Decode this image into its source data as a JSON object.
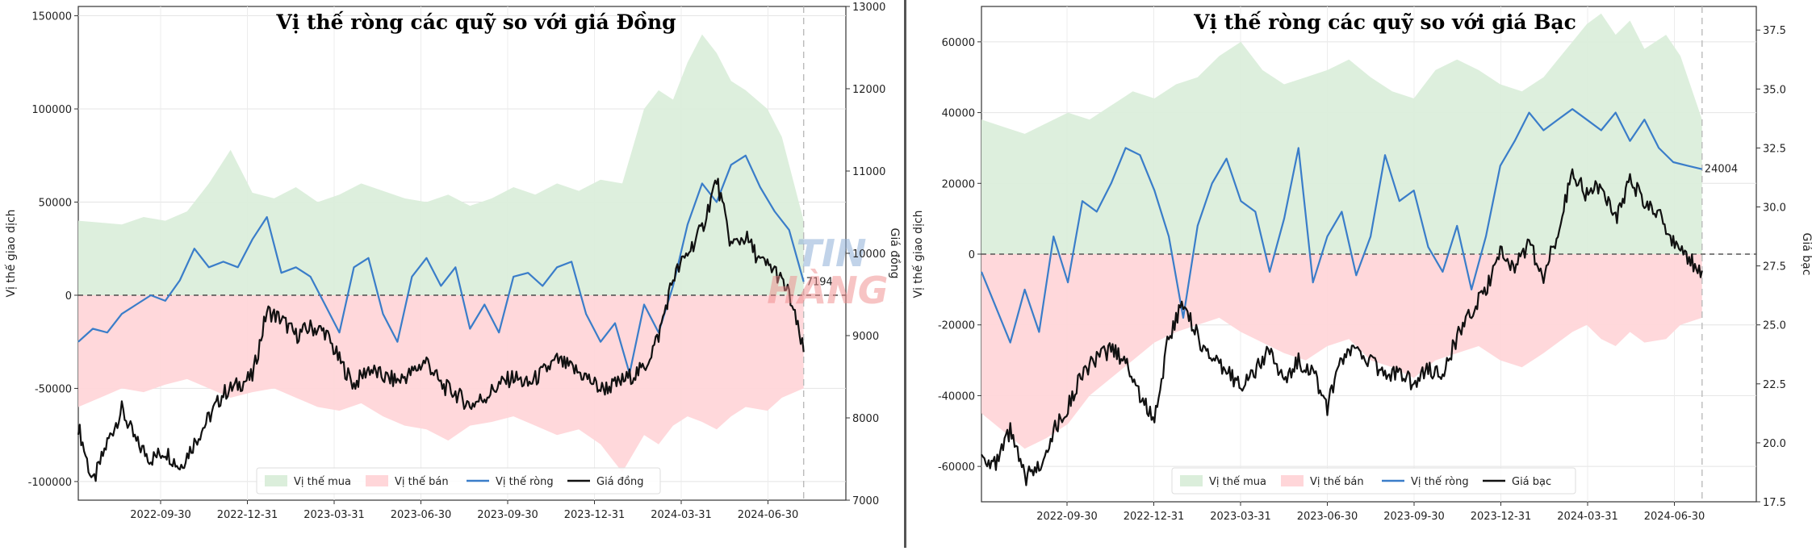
{
  "chart_data": [
    {
      "type": "line",
      "title": "Vị thế ròng các quỹ so với giá Đồng",
      "ylabel": "Vị thế giao dịch",
      "y2label": "Giá đồng",
      "xticks": [
        "2022-09-30",
        "2022-12-31",
        "2023-03-31",
        "2023-06-30",
        "2023-09-30",
        "2023-12-31",
        "2024-03-31",
        "2024-06-30"
      ],
      "ylim": [
        -110000,
        155000
      ],
      "yticks": [
        150000,
        100000,
        50000,
        0,
        -50000,
        -100000
      ],
      "y2lim": [
        7000,
        13000
      ],
      "y2ticks": [
        13000,
        12000,
        11000,
        10000,
        9000,
        8000,
        7000
      ],
      "net_label": "7194",
      "legend_position": "bottom-center",
      "grid": true,
      "colors": {
        "long": "#dbeedb",
        "short": "#ffd6d9",
        "net": "#3a7dc9",
        "price": "#111111"
      },
      "series": [
        {
          "name": "Vị thế mua",
          "kind": "area",
          "x": [
            0,
            0.03,
            0.06,
            0.09,
            0.12,
            0.15,
            0.18,
            0.21,
            0.24,
            0.27,
            0.3,
            0.33,
            0.36,
            0.39,
            0.42,
            0.45,
            0.48,
            0.51,
            0.54,
            0.57,
            0.6,
            0.63,
            0.66,
            0.69,
            0.72,
            0.75,
            0.78,
            0.8,
            0.82,
            0.84,
            0.86,
            0.88,
            0.9,
            0.92,
            0.95,
            0.97,
            1.0
          ],
          "values": [
            40000,
            39000,
            38000,
            42000,
            40000,
            45000,
            60000,
            78000,
            55000,
            52000,
            58000,
            50000,
            54000,
            60000,
            56000,
            52000,
            50000,
            54000,
            48000,
            52000,
            58000,
            54000,
            60000,
            56000,
            62000,
            60000,
            100000,
            110000,
            105000,
            125000,
            140000,
            130000,
            115000,
            110000,
            100000,
            85000,
            40000
          ]
        },
        {
          "name": "Vị thế bán",
          "kind": "area",
          "x": [
            0,
            0.03,
            0.06,
            0.09,
            0.12,
            0.15,
            0.18,
            0.21,
            0.24,
            0.27,
            0.3,
            0.33,
            0.36,
            0.39,
            0.42,
            0.45,
            0.48,
            0.51,
            0.54,
            0.57,
            0.6,
            0.63,
            0.66,
            0.69,
            0.72,
            0.75,
            0.78,
            0.8,
            0.82,
            0.84,
            0.86,
            0.88,
            0.9,
            0.92,
            0.95,
            0.97,
            1.0
          ],
          "values": [
            -60000,
            -55000,
            -50000,
            -52000,
            -48000,
            -45000,
            -50000,
            -55000,
            -52000,
            -50000,
            -55000,
            -60000,
            -62000,
            -58000,
            -65000,
            -70000,
            -72000,
            -78000,
            -70000,
            -68000,
            -65000,
            -70000,
            -75000,
            -72000,
            -80000,
            -95000,
            -75000,
            -80000,
            -70000,
            -65000,
            -68000,
            -72000,
            -65000,
            -60000,
            -62000,
            -55000,
            -50000
          ]
        },
        {
          "name": "Vị thế ròng",
          "kind": "line",
          "x": [
            0,
            0.02,
            0.04,
            0.06,
            0.08,
            0.1,
            0.12,
            0.14,
            0.16,
            0.18,
            0.2,
            0.22,
            0.24,
            0.26,
            0.28,
            0.3,
            0.32,
            0.34,
            0.36,
            0.38,
            0.4,
            0.42,
            0.44,
            0.46,
            0.48,
            0.5,
            0.52,
            0.54,
            0.56,
            0.58,
            0.6,
            0.62,
            0.64,
            0.66,
            0.68,
            0.7,
            0.72,
            0.74,
            0.76,
            0.78,
            0.8,
            0.82,
            0.84,
            0.86,
            0.88,
            0.9,
            0.92,
            0.94,
            0.96,
            0.98,
            1.0
          ],
          "values": [
            -25000,
            -18000,
            -20000,
            -10000,
            -5000,
            0,
            -3000,
            8000,
            25000,
            15000,
            18000,
            15000,
            30000,
            42000,
            12000,
            15000,
            10000,
            -5000,
            -20000,
            15000,
            20000,
            -10000,
            -25000,
            10000,
            20000,
            5000,
            15000,
            -18000,
            -5000,
            -20000,
            10000,
            12000,
            5000,
            15000,
            18000,
            -10000,
            -25000,
            -15000,
            -42000,
            -5000,
            -20000,
            5000,
            38000,
            60000,
            50000,
            70000,
            75000,
            58000,
            45000,
            35000,
            7194
          ]
        },
        {
          "name": "Giá đồng",
          "kind": "line",
          "axis": "right",
          "x": [
            0,
            0.02,
            0.04,
            0.06,
            0.08,
            0.1,
            0.12,
            0.14,
            0.16,
            0.18,
            0.2,
            0.22,
            0.24,
            0.26,
            0.28,
            0.3,
            0.32,
            0.34,
            0.36,
            0.38,
            0.4,
            0.42,
            0.44,
            0.46,
            0.48,
            0.5,
            0.52,
            0.54,
            0.56,
            0.58,
            0.6,
            0.62,
            0.64,
            0.66,
            0.68,
            0.7,
            0.72,
            0.74,
            0.76,
            0.78,
            0.8,
            0.82,
            0.84,
            0.86,
            0.88,
            0.9,
            0.92,
            0.94,
            0.96,
            0.98,
            1.0
          ],
          "values": [
            7900,
            7200,
            7700,
            8100,
            7700,
            7500,
            7600,
            7400,
            7700,
            8000,
            8300,
            8400,
            8500,
            9300,
            9200,
            9000,
            9100,
            9050,
            8700,
            8400,
            8600,
            8500,
            8450,
            8550,
            8700,
            8400,
            8300,
            8150,
            8250,
            8400,
            8500,
            8400,
            8550,
            8700,
            8600,
            8500,
            8350,
            8400,
            8500,
            8600,
            9000,
            9700,
            10000,
            10300,
            10900,
            10100,
            10200,
            9900,
            9800,
            9500,
            8800
          ]
        }
      ],
      "legend": [
        "Vị thế mua",
        "Vị thế bán",
        "Vị thế ròng",
        "Giá đồng"
      ]
    },
    {
      "type": "line",
      "title": "Vị thế ròng các quỹ so với giá Bạc",
      "ylabel": "Vị thế giao dịch",
      "y2label": "Giá bạc",
      "xticks": [
        "2022-09-30",
        "2022-12-31",
        "2023-03-31",
        "2023-06-30",
        "2023-09-30",
        "2023-12-31",
        "2024-03-31",
        "2024-06-30"
      ],
      "ylim": [
        -70000,
        70000
      ],
      "yticks": [
        60000,
        40000,
        20000,
        0,
        -20000,
        -40000,
        -60000
      ],
      "y2lim": [
        17.5,
        38.5
      ],
      "y2ticks": [
        37.5,
        35.0,
        32.5,
        30.0,
        27.5,
        25.0,
        22.5,
        20.0,
        17.5
      ],
      "net_label": "24004",
      "legend_position": "bottom-center",
      "grid": true,
      "colors": {
        "long": "#dbeedb",
        "short": "#ffd6d9",
        "net": "#3a7dc9",
        "price": "#111111"
      },
      "series": [
        {
          "name": "Vị thế mua",
          "kind": "area",
          "x": [
            0,
            0.03,
            0.06,
            0.09,
            0.12,
            0.15,
            0.18,
            0.21,
            0.24,
            0.27,
            0.3,
            0.33,
            0.36,
            0.39,
            0.42,
            0.45,
            0.48,
            0.51,
            0.54,
            0.57,
            0.6,
            0.63,
            0.66,
            0.69,
            0.72,
            0.75,
            0.78,
            0.8,
            0.82,
            0.84,
            0.86,
            0.88,
            0.9,
            0.92,
            0.95,
            0.97,
            1.0
          ],
          "values": [
            38000,
            36000,
            34000,
            37000,
            40000,
            38000,
            42000,
            46000,
            44000,
            48000,
            50000,
            56000,
            60000,
            52000,
            48000,
            50000,
            52000,
            55000,
            50000,
            46000,
            44000,
            52000,
            55000,
            52000,
            48000,
            46000,
            50000,
            55000,
            60000,
            65000,
            68000,
            62000,
            66000,
            58000,
            62000,
            56000,
            38000
          ]
        },
        {
          "name": "Vị thế bán",
          "kind": "area",
          "x": [
            0,
            0.03,
            0.06,
            0.09,
            0.12,
            0.15,
            0.18,
            0.21,
            0.24,
            0.27,
            0.3,
            0.33,
            0.36,
            0.39,
            0.42,
            0.45,
            0.48,
            0.51,
            0.54,
            0.57,
            0.6,
            0.63,
            0.66,
            0.69,
            0.72,
            0.75,
            0.78,
            0.8,
            0.82,
            0.84,
            0.86,
            0.88,
            0.9,
            0.92,
            0.95,
            0.97,
            1.0
          ],
          "values": [
            -45000,
            -50000,
            -55000,
            -52000,
            -48000,
            -40000,
            -35000,
            -30000,
            -25000,
            -22000,
            -20000,
            -18000,
            -22000,
            -25000,
            -28000,
            -30000,
            -26000,
            -24000,
            -30000,
            -32000,
            -35000,
            -30000,
            -28000,
            -26000,
            -30000,
            -32000,
            -28000,
            -25000,
            -22000,
            -20000,
            -24000,
            -26000,
            -22000,
            -25000,
            -24000,
            -20000,
            -18000
          ]
        },
        {
          "name": "Vị thế ròng",
          "kind": "line",
          "x": [
            0,
            0.02,
            0.04,
            0.06,
            0.08,
            0.1,
            0.12,
            0.14,
            0.16,
            0.18,
            0.2,
            0.22,
            0.24,
            0.26,
            0.28,
            0.3,
            0.32,
            0.34,
            0.36,
            0.38,
            0.4,
            0.42,
            0.44,
            0.46,
            0.48,
            0.5,
            0.52,
            0.54,
            0.56,
            0.58,
            0.6,
            0.62,
            0.64,
            0.66,
            0.68,
            0.7,
            0.72,
            0.74,
            0.76,
            0.78,
            0.8,
            0.82,
            0.84,
            0.86,
            0.88,
            0.9,
            0.92,
            0.94,
            0.96,
            0.98,
            1.0
          ],
          "values": [
            -5000,
            -15000,
            -25000,
            -10000,
            -22000,
            5000,
            -8000,
            15000,
            12000,
            20000,
            30000,
            28000,
            18000,
            5000,
            -18000,
            8000,
            20000,
            27000,
            15000,
            12000,
            -5000,
            10000,
            30000,
            -8000,
            5000,
            12000,
            -6000,
            5000,
            28000,
            15000,
            18000,
            2000,
            -5000,
            8000,
            -10000,
            5000,
            25000,
            32000,
            40000,
            35000,
            38000,
            41000,
            38000,
            35000,
            40000,
            32000,
            38000,
            30000,
            26000,
            25000,
            24004
          ]
        },
        {
          "name": "Giá bạc",
          "kind": "line",
          "axis": "right",
          "x": [
            0,
            0.02,
            0.04,
            0.06,
            0.08,
            0.1,
            0.12,
            0.14,
            0.16,
            0.18,
            0.2,
            0.22,
            0.24,
            0.26,
            0.28,
            0.3,
            0.32,
            0.34,
            0.36,
            0.38,
            0.4,
            0.42,
            0.44,
            0.46,
            0.48,
            0.5,
            0.52,
            0.54,
            0.56,
            0.58,
            0.6,
            0.62,
            0.64,
            0.66,
            0.68,
            0.7,
            0.72,
            0.74,
            0.76,
            0.78,
            0.8,
            0.82,
            0.84,
            0.86,
            0.88,
            0.9,
            0.92,
            0.94,
            0.96,
            0.98,
            1.0
          ],
          "values": [
            19.5,
            19.0,
            20.5,
            18.5,
            19.0,
            20.5,
            21.5,
            23.0,
            23.5,
            24.0,
            23.5,
            22.0,
            21.0,
            24.5,
            26.0,
            24.5,
            23.5,
            23.0,
            22.5,
            23.0,
            24.0,
            22.5,
            23.5,
            23.0,
            21.5,
            23.5,
            24.0,
            23.5,
            22.8,
            23.0,
            22.5,
            23.2,
            22.8,
            24.5,
            25.5,
            26.5,
            28.0,
            27.5,
            28.5,
            27.0,
            29.0,
            31.5,
            30.5,
            31.0,
            29.5,
            31.2,
            30.2,
            29.8,
            28.5,
            27.8,
            27.3
          ]
        }
      ],
      "legend": [
        "Vị thế mua",
        "Vị thế bán",
        "Vị thế ròng",
        "Giá bạc"
      ]
    }
  ],
  "watermark": {
    "line1": "TIN",
    "line2": "HÀNG HÓA"
  }
}
